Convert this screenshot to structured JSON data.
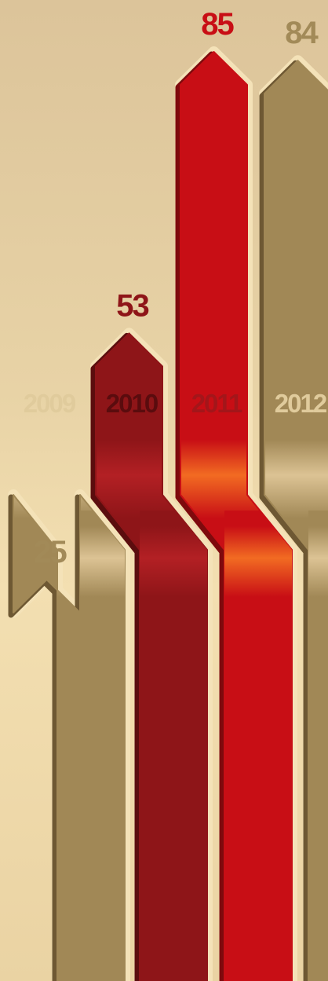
{
  "chart_data": {
    "type": "bar",
    "categories": [
      "2009",
      "2010",
      "2011",
      "2012"
    ],
    "values": [
      25,
      53,
      85,
      84
    ],
    "title": "",
    "xlabel": "",
    "ylabel": "",
    "grid": false,
    "legend": "none",
    "colors": [
      "#a18856",
      "#8e1518",
      "#c80e15",
      "#a18856"
    ],
    "edge_colors": [
      "#6e5833",
      "#5b0d0e",
      "#7e0a0d",
      "#6e5833"
    ],
    "value_label_colors": [
      "#a28a58",
      "#8e1518",
      "#c80e15",
      "#a28a58"
    ],
    "year_label_colors": [
      "#e0cb9c",
      "#5a0c0e",
      "#a3161a",
      "#e0cb9c"
    ],
    "band_colors": [
      "#dcc394",
      "#b32024",
      "#f26b22",
      "#dcc394"
    ]
  }
}
